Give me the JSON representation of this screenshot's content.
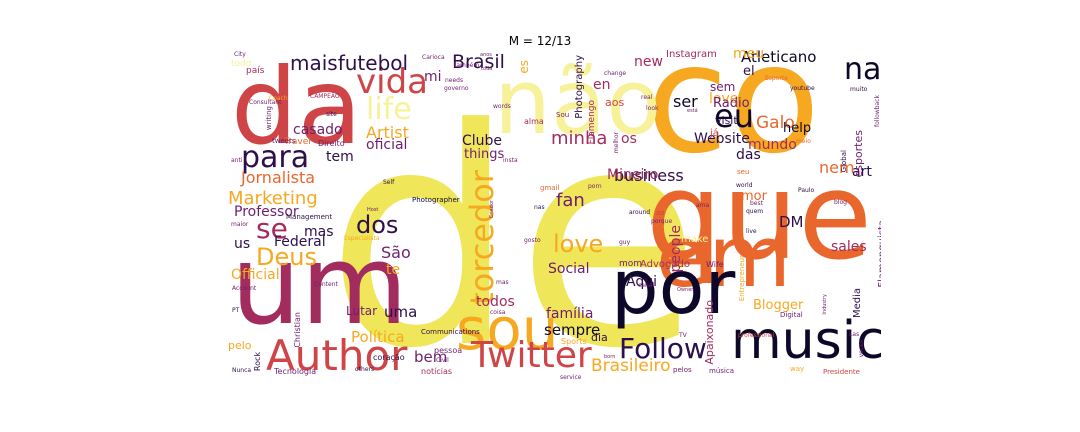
{
  "title": "M = 12/13",
  "palette": [
    "#f0e65a",
    "#f6a821",
    "#e9672c",
    "#cf4446",
    "#a22c5e",
    "#6e1f6c",
    "#2d0f4b",
    "#0d0829",
    "#f7f29a"
  ],
  "words": [
    {
      "t": "de",
      "c": "#f0e65a"
    },
    {
      "t": "co",
      "c": "#f6a821"
    },
    {
      "t": "que",
      "c": "#e9672c"
    },
    {
      "t": "da",
      "c": "#cf4446"
    },
    {
      "t": "não",
      "c": "#f7f29a"
    },
    {
      "t": "um",
      "c": "#a22c5e"
    },
    {
      "t": "em",
      "c": "#e9672c"
    },
    {
      "t": "por",
      "c": "#0d0829"
    },
    {
      "t": "sou",
      "c": "#f6a821"
    },
    {
      "t": "music",
      "c": "#0d0829"
    },
    {
      "t": "Author",
      "c": "#cf4446"
    },
    {
      "t": "Twitter",
      "c": "#cf4446"
    },
    {
      "t": "Follow",
      "c": "#2d0f4b"
    },
    {
      "t": "torcedor",
      "c": "#f6a821"
    },
    {
      "t": "na",
      "c": "#0d0829"
    },
    {
      "t": "vida",
      "c": "#cf4446"
    },
    {
      "t": "para",
      "c": "#2d0f4b"
    },
    {
      "t": "life",
      "c": "#f7f29a"
    },
    {
      "t": "eu",
      "c": "#0d0829"
    },
    {
      "t": "se",
      "c": "#a22c5e"
    },
    {
      "t": "Deus",
      "c": "#f6a821"
    },
    {
      "t": "dos",
      "c": "#2d0f4b"
    },
    {
      "t": "love",
      "c": "#f6a821"
    },
    {
      "t": "maisfutebol",
      "c": "#2d0f4b"
    },
    {
      "t": "Brasil",
      "c": "#2d0f4b"
    },
    {
      "t": "Marketing",
      "c": "#f6a821"
    },
    {
      "t": "Artist",
      "c": "#f6a821"
    },
    {
      "t": "minha",
      "c": "#a22c5e"
    },
    {
      "t": "fan",
      "c": "#6e1f6c"
    },
    {
      "t": "Brasileiro",
      "c": "#f6a821"
    },
    {
      "t": "Jornalista",
      "c": "#e9672c"
    },
    {
      "t": "Official",
      "c": "#f6a821"
    },
    {
      "t": "Professor",
      "c": "#6e1f6c"
    },
    {
      "t": "business",
      "c": "#2d0f4b"
    },
    {
      "t": "Social",
      "c": "#6e1f6c"
    },
    {
      "t": "família",
      "c": "#6e1f6c"
    },
    {
      "t": "sempre",
      "c": "#0d0829"
    },
    {
      "t": "Política",
      "c": "#f6a821"
    },
    {
      "t": "bem",
      "c": "#6e1f6c"
    },
    {
      "t": "Galo",
      "c": "#e9672c"
    },
    {
      "t": "Atleticano",
      "c": "#0d0829"
    },
    {
      "t": "mundo",
      "c": "#a22c5e"
    },
    {
      "t": "Website",
      "c": "#2d0f4b"
    },
    {
      "t": "lover",
      "c": "#f6a821"
    },
    {
      "t": "Mineiro",
      "c": "#a22c5e"
    },
    {
      "t": "Clube",
      "c": "#2d0f4b"
    },
    {
      "t": "things",
      "c": "#6e1f6c"
    },
    {
      "t": "oficial",
      "c": "#6e1f6c"
    },
    {
      "t": "tem",
      "c": "#2d0f4b"
    },
    {
      "t": "casado",
      "c": "#6e1f6c"
    },
    {
      "t": "mas",
      "c": "#2d0f4b"
    },
    {
      "t": "us",
      "c": "#2d0f4b"
    },
    {
      "t": "Federal",
      "c": "#2d0f4b"
    },
    {
      "t": "São",
      "c": "#6e1f6c"
    },
    {
      "t": "te",
      "c": "#f6a821"
    },
    {
      "t": "uma",
      "c": "#2d0f4b"
    },
    {
      "t": "Lutar",
      "c": "#6e1f6c"
    },
    {
      "t": "todos",
      "c": "#a22c5e"
    },
    {
      "t": "Aqui",
      "c": "#2d0f4b"
    },
    {
      "t": "Blogger",
      "c": "#f6a821"
    },
    {
      "t": "Apaixonado",
      "c": "#a22c5e"
    },
    {
      "t": "nem",
      "c": "#e9672c"
    },
    {
      "t": "art",
      "c": "#2d0f4b"
    },
    {
      "t": "DM",
      "c": "#2d0f4b"
    },
    {
      "t": "sales",
      "c": "#a22c5e"
    },
    {
      "t": "people",
      "c": "#a22c5e"
    },
    {
      "t": "amor",
      "c": "#e9672c"
    },
    {
      "t": "das",
      "c": "#2d0f4b"
    },
    {
      "t": "help",
      "c": "#0d0829"
    },
    {
      "t": "Radio",
      "c": "#6e1f6c"
    },
    {
      "t": "ser",
      "c": "#0d0829"
    },
    {
      "t": "new",
      "c": "#a22c5e"
    },
    {
      "t": "meu",
      "c": "#f6a821"
    },
    {
      "t": "el",
      "c": "#2d0f4b"
    },
    {
      "t": "en",
      "c": "#a22c5e"
    },
    {
      "t": "mi",
      "c": "#6e1f6c"
    },
    {
      "t": "os",
      "c": "#a22c5e"
    },
    {
      "t": "es",
      "c": "#f6a821"
    },
    {
      "t": "visit",
      "c": "#2d0f4b"
    },
    {
      "t": "sem",
      "c": "#6e1f6c"
    },
    {
      "t": "aos",
      "c": "#cf4446"
    },
    {
      "t": "Photography",
      "c": "#2d0f4b"
    },
    {
      "t": "Instagram",
      "c": "#a22c5e"
    },
    {
      "t": "Flamengo",
      "c": "#a22c5e"
    },
    {
      "t": "esportes",
      "c": "#6e1f6c"
    },
    {
      "t": "Flamenguista",
      "c": "#6e1f6c"
    },
    {
      "t": "Media",
      "c": "#2d0f4b"
    },
    {
      "t": "pelo",
      "c": "#f6a821"
    },
    {
      "t": "dia",
      "c": "#2d0f4b"
    },
    {
      "t": "Advogado",
      "c": "#a22c5e"
    },
    {
      "t": "mom",
      "c": "#6e1f6c"
    },
    {
      "t": "make",
      "c": "#f7f29a"
    },
    {
      "t": "Wife",
      "c": "#6e1f6c"
    },
    {
      "t": "Rock",
      "c": "#2d0f4b"
    },
    {
      "t": "Tecnologia",
      "c": "#6e1f6c"
    },
    {
      "t": "notícias",
      "c": "#a22c5e"
    },
    {
      "t": "pessoa",
      "c": "#6e1f6c"
    },
    {
      "t": "coração",
      "c": "#2d0f4b"
    },
    {
      "t": "Sports",
      "c": "#f6a821"
    },
    {
      "t": "Communications",
      "c": "#2d0f4b"
    },
    {
      "t": "Christian",
      "c": "#6e1f6c"
    },
    {
      "t": "Management",
      "c": "#2d0f4b"
    },
    {
      "t": "Photographer",
      "c": "#0d0829"
    },
    {
      "t": "Self",
      "c": "#2d0f4b"
    },
    {
      "t": "Direito",
      "c": "#6e1f6c"
    },
    {
      "t": "Travel",
      "c": "#e9672c"
    },
    {
      "t": "tweets",
      "c": "#6e1f6c"
    },
    {
      "t": "writing",
      "c": "#6e1f6c"
    },
    {
      "t": "Global",
      "c": "#2d0f4b"
    },
    {
      "t": "Digital",
      "c": "#6e1f6c"
    },
    {
      "t": "Presidente",
      "c": "#cf4446"
    },
    {
      "t": "música",
      "c": "#6e1f6c"
    },
    {
      "t": "pelos",
      "c": "#6e1f6c"
    },
    {
      "t": "others",
      "c": "#2d0f4b"
    },
    {
      "t": "Nunca",
      "c": "#2d0f4b"
    },
    {
      "t": "PT",
      "c": "#2d0f4b"
    },
    {
      "t": "anti",
      "c": "#6e1f6c"
    },
    {
      "t": "maior",
      "c": "#6e1f6c"
    },
    {
      "t": "City",
      "c": "#6e1f6c"
    },
    {
      "t": "todo",
      "c": "#f7f29a"
    },
    {
      "t": "país",
      "c": "#a22c5e"
    },
    {
      "t": "Carioca",
      "c": "#6e1f6c"
    },
    {
      "t": "também",
      "c": "#6e1f6c"
    },
    {
      "t": "needs",
      "c": "#6e1f6c"
    },
    {
      "t": "governo",
      "c": "#6e1f6c"
    },
    {
      "t": "anos",
      "c": "#6e1f6c"
    },
    {
      "t": "toda",
      "c": "#6e1f6c"
    },
    {
      "t": "CAMPEÃO",
      "c": "#a22c5e"
    },
    {
      "t": "site",
      "c": "#2d0f4b"
    },
    {
      "t": "Esporte",
      "c": "#e9672c"
    },
    {
      "t": "youtube",
      "c": "#2d0f4b"
    },
    {
      "t": "muito",
      "c": "#2d0f4b"
    },
    {
      "t": "followback",
      "c": "#6e1f6c"
    },
    {
      "t": "real",
      "c": "#6e1f6c"
    },
    {
      "t": "change",
      "c": "#6e1f6c"
    },
    {
      "t": "está",
      "c": "#6e1f6c"
    },
    {
      "t": "meio",
      "c": "#e9672c"
    },
    {
      "t": "já",
      "c": "#cf4446"
    },
    {
      "t": "around",
      "c": "#2d0f4b"
    },
    {
      "t": "Paulo",
      "c": "#2d0f4b"
    },
    {
      "t": "world",
      "c": "#2d0f4b"
    },
    {
      "t": "blog",
      "c": "#6e1f6c"
    },
    {
      "t": "quem",
      "c": "#2d0f4b"
    },
    {
      "t": "live",
      "c": "#2d0f4b"
    },
    {
      "t": "ao",
      "c": "#cf4446"
    },
    {
      "t": "porque",
      "c": "#6e1f6c"
    },
    {
      "t": "Industry",
      "c": "#6e1f6c"
    },
    {
      "t": "Las",
      "c": "#6e1f6c"
    },
    {
      "t": "veces",
      "c": "#6e1f6c"
    },
    {
      "t": "TV",
      "c": "#6e1f6c"
    },
    {
      "t": "professional",
      "c": "#cf4446"
    },
    {
      "t": "canal",
      "c": "#6e1f6c"
    },
    {
      "t": "way",
      "c": "#f6a821"
    },
    {
      "t": "nas",
      "c": "#2d0f4b"
    },
    {
      "t": "gmail",
      "c": "#e9672c"
    },
    {
      "t": "porn",
      "c": "#6e1f6c"
    },
    {
      "t": "gosto",
      "c": "#6e1f6c"
    },
    {
      "t": "alma",
      "c": "#a22c5e"
    },
    {
      "t": "insta",
      "c": "#6e1f6c"
    },
    {
      "t": "words",
      "c": "#6e1f6c"
    },
    {
      "t": "melhor",
      "c": "#6e1f6c"
    },
    {
      "t": "Consultant",
      "c": "#6e1f6c"
    },
    {
      "t": "Host",
      "c": "#6e1f6c"
    },
    {
      "t": "Account",
      "c": "#6e1f6c"
    },
    {
      "t": "service",
      "c": "#6e1f6c"
    },
    {
      "t": "Civil",
      "c": "#6e1f6c"
    },
    {
      "t": "guy",
      "c": "#6e1f6c"
    },
    {
      "t": "look",
      "c": "#6e1f6c"
    },
    {
      "t": "Coach",
      "c": "#f6a821"
    },
    {
      "t": "seu",
      "c": "#e9672c"
    },
    {
      "t": "Entrepreneur",
      "c": "#f6a821"
    },
    {
      "t": "best",
      "c": "#6e1f6c"
    },
    {
      "t": "Owner",
      "c": "#6e1f6c"
    },
    {
      "t": "Criador",
      "c": "#6e1f6c"
    },
    {
      "t": "born",
      "c": "#6e1f6c"
    },
    {
      "t": "Especialista",
      "c": "#f6a821"
    },
    {
      "t": "Content",
      "c": "#6e1f6c"
    },
    {
      "t": "coisa",
      "c": "#6e1f6c"
    },
    {
      "t": "ama",
      "c": "#6e1f6c"
    },
    {
      "t": "Sou",
      "c": "#6e1f6c"
    },
    {
      "t": "mas",
      "c": "#6e1f6c"
    }
  ]
}
